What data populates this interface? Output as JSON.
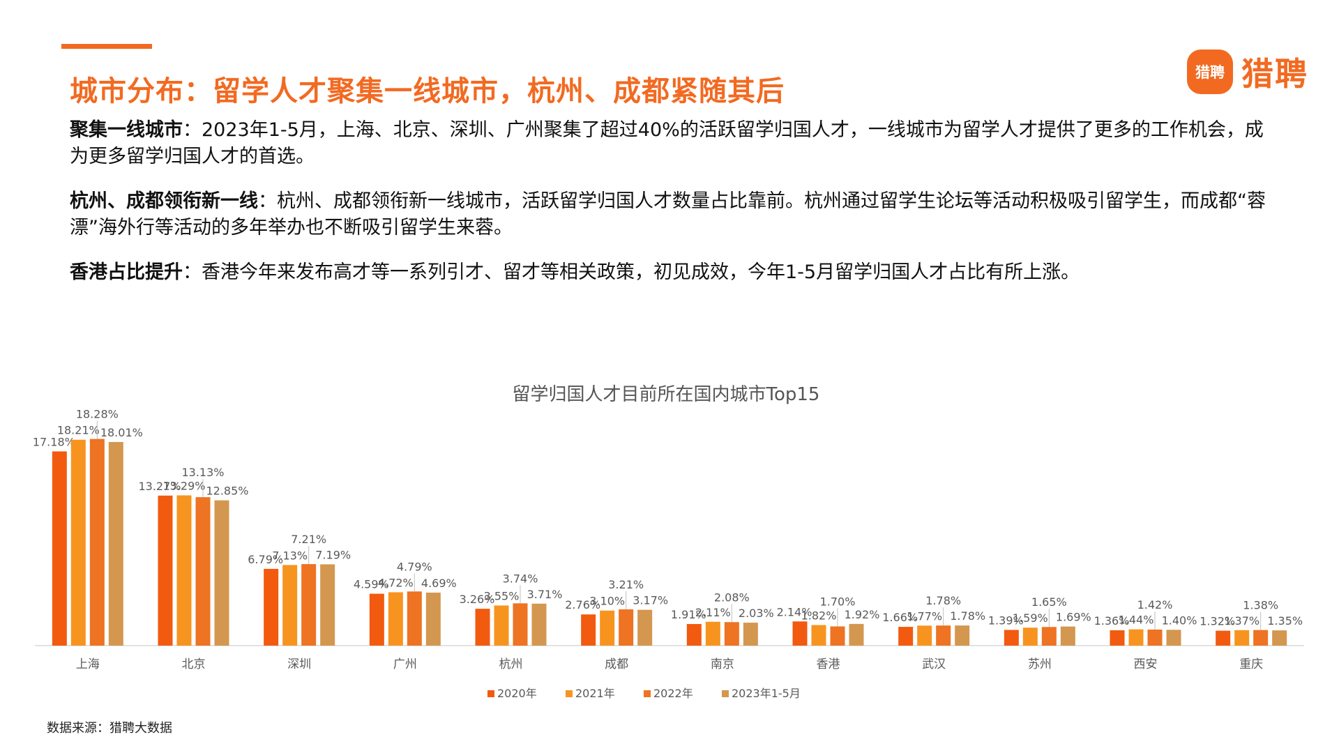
{
  "slide": {
    "title": "城市分布：留学人才聚集一线城市，杭州、成都紧随其后",
    "logo_badge": "猎聘",
    "logo_text": "猎聘",
    "paragraphs": [
      {
        "heading": "聚集一线城市",
        "separator": "：",
        "text": "2023年1-5月，上海、北京、深圳、广州聚集了超过40%的活跃留学归国人才，一线城市为留学人才提供了更多的工作机会，成为更多留学归国人才的首选。"
      },
      {
        "heading": "杭州、成都领衔新一线",
        "separator": "：",
        "text": "杭州、成都领衔新一线城市，活跃留学归国人才数量占比靠前。杭州通过留学生论坛等活动积极吸引留学生，而成都“蓉漂”海外行等活动的多年举办也不断吸引留学生来蓉。"
      },
      {
        "heading": "香港占比提升",
        "separator": "：",
        "text": "香港今年来发布高才等一系列引才、留才等相关政策，初见成效，今年1-5月留学归国人才占比有所上涨。"
      }
    ],
    "source": "数据来源：猎聘大数据"
  },
  "colors": {
    "accent": "#f26a21",
    "series": [
      "#f25a0f",
      "#f79420",
      "#ee7322",
      "#d4974f"
    ]
  },
  "chart_data": {
    "type": "bar",
    "title": "留学归国人才目前所在国内城市Top15",
    "categories": [
      "上海",
      "北京",
      "深圳",
      "广州",
      "杭州",
      "成都",
      "南京",
      "香港",
      "武汉",
      "苏州",
      "西安",
      "重庆"
    ],
    "series": [
      {
        "name": "2020年",
        "values": [
          17.18,
          13.27,
          6.79,
          4.59,
          3.26,
          2.76,
          1.91,
          2.14,
          1.66,
          1.39,
          1.36,
          1.32
        ]
      },
      {
        "name": "2021年",
        "values": [
          18.21,
          13.29,
          7.13,
          4.72,
          3.55,
          3.1,
          2.11,
          1.82,
          1.77,
          1.59,
          1.44,
          1.37
        ]
      },
      {
        "name": "2022年",
        "values": [
          18.28,
          13.13,
          7.21,
          4.79,
          3.74,
          3.21,
          2.08,
          1.7,
          1.78,
          1.65,
          1.42,
          1.38
        ]
      },
      {
        "name": "2023年1-5月",
        "values": [
          18.01,
          12.85,
          7.19,
          4.69,
          3.71,
          3.17,
          2.03,
          1.92,
          1.78,
          1.69,
          1.4,
          1.35
        ]
      }
    ],
    "value_suffix": "%",
    "legend": "bottom-center",
    "grid": false
  }
}
